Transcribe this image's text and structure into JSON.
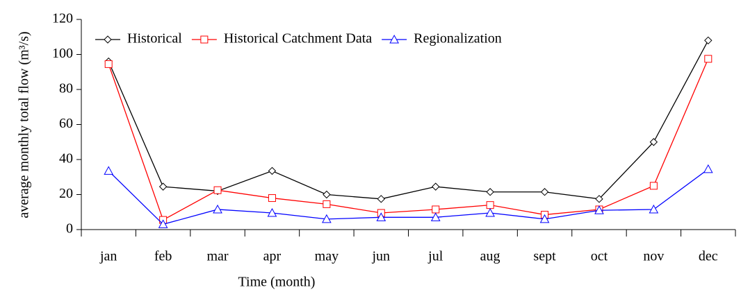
{
  "chart_data": {
    "type": "line",
    "x_label": "Time (month)",
    "y_label": "average monthly total flow (m³/s)",
    "categories": [
      "jan",
      "feb",
      "mar",
      "apr",
      "may",
      "jun",
      "jul",
      "aug",
      "sept",
      "oct",
      "nov",
      "dec"
    ],
    "series": [
      {
        "name": "Historical",
        "color": "#000000",
        "marker": "diamond",
        "values": [
          96,
          24.5,
          22,
          33.5,
          20,
          17.5,
          24.5,
          21.5,
          21.5,
          17.5,
          50,
          108
        ]
      },
      {
        "name": "Historical Catchment Data",
        "color": "#ff0000",
        "marker": "square",
        "values": [
          94.5,
          5.5,
          22.5,
          18,
          14.5,
          9.5,
          11.5,
          14,
          8.5,
          11.5,
          25,
          97.5
        ]
      },
      {
        "name": "Regionalization",
        "color": "#0000ff",
        "marker": "triangle",
        "values": [
          33.5,
          3,
          11.5,
          9.5,
          6,
          7,
          7,
          9.5,
          6,
          11,
          11.5,
          34.5
        ]
      }
    ],
    "ylim": [
      0,
      120
    ],
    "yticks": [
      0,
      20,
      40,
      60,
      80,
      100,
      120
    ],
    "grid": false,
    "legend": "top-left"
  }
}
